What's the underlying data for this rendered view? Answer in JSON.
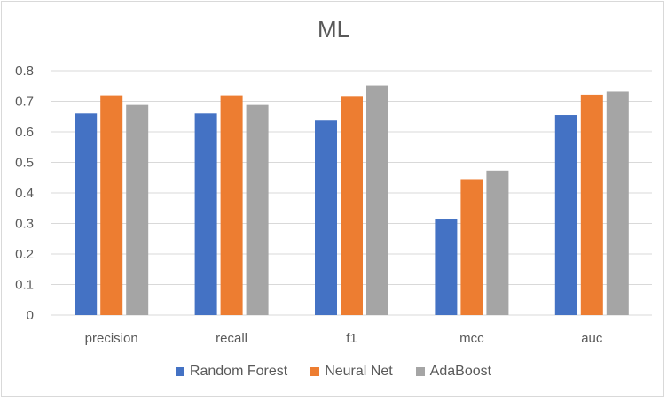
{
  "chart_data": {
    "type": "bar",
    "title": "ML",
    "categories": [
      "precision",
      "recall",
      "f1",
      "mcc",
      "auc"
    ],
    "series": [
      {
        "name": "Random Forest",
        "color": "#4472c4",
        "values": [
          0.66,
          0.66,
          0.637,
          0.313,
          0.655
        ]
      },
      {
        "name": "Neural Net",
        "color": "#ed7d31",
        "values": [
          0.72,
          0.72,
          0.715,
          0.445,
          0.722
        ]
      },
      {
        "name": "AdaBoost",
        "color": "#a5a5a5",
        "values": [
          0.688,
          0.688,
          0.752,
          0.473,
          0.732
        ]
      }
    ],
    "yticks": [
      "0",
      "0.1",
      "0.2",
      "0.3",
      "0.4",
      "0.5",
      "0.6",
      "0.7",
      "0.8"
    ],
    "ylim": [
      0,
      0.8
    ],
    "grid": true,
    "legend_position": "bottom",
    "gridline_color": "#d9d9d9"
  }
}
